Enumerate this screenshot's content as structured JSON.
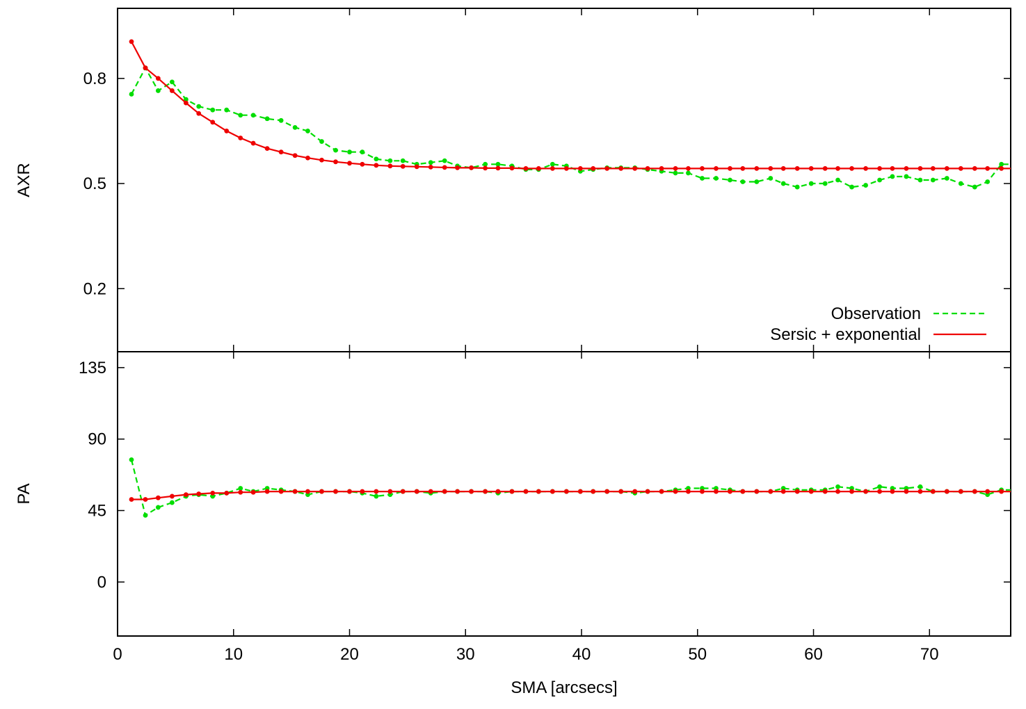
{
  "chart_data": [
    {
      "type": "line",
      "panel": "top",
      "title": "",
      "xlabel": "",
      "ylabel": "AXR",
      "xlim": [
        0,
        77
      ],
      "ylim": [
        0.02,
        1.0
      ],
      "xticks": [
        0,
        10,
        20,
        30,
        40,
        50,
        60,
        70
      ],
      "xtick_labels": [],
      "yticks": [
        0.2,
        0.5,
        0.8
      ],
      "ytick_labels": [
        "0.2",
        "0.5",
        "0.8"
      ],
      "grid": false,
      "legend": {
        "placement": "bottom-right",
        "entries": [
          "Observation",
          "Sersic + exponential"
        ]
      },
      "series": [
        {
          "name": "Observation",
          "color": "#00dd00",
          "line_style": "dashed",
          "points": [
            [
              1.2,
              0.755
            ],
            [
              2.4,
              0.83
            ],
            [
              3.5,
              0.765
            ],
            [
              4.7,
              0.79
            ],
            [
              5.9,
              0.74
            ],
            [
              7.0,
              0.72
            ],
            [
              8.2,
              0.71
            ],
            [
              9.4,
              0.71
            ],
            [
              10.6,
              0.695
            ],
            [
              11.7,
              0.695
            ],
            [
              12.9,
              0.685
            ],
            [
              14.1,
              0.68
            ],
            [
              15.3,
              0.66
            ],
            [
              16.4,
              0.65
            ],
            [
              17.6,
              0.62
            ],
            [
              18.8,
              0.595
            ],
            [
              20.0,
              0.59
            ],
            [
              21.1,
              0.59
            ],
            [
              22.3,
              0.57
            ],
            [
              23.5,
              0.565
            ],
            [
              24.6,
              0.565
            ],
            [
              25.8,
              0.555
            ],
            [
              27.0,
              0.56
            ],
            [
              28.2,
              0.565
            ],
            [
              29.3,
              0.55
            ],
            [
              30.5,
              0.545
            ],
            [
              31.7,
              0.555
            ],
            [
              32.8,
              0.555
            ],
            [
              34.0,
              0.55
            ],
            [
              35.2,
              0.54
            ],
            [
              36.3,
              0.54
            ],
            [
              37.5,
              0.555
            ],
            [
              38.7,
              0.55
            ],
            [
              39.9,
              0.535
            ],
            [
              41.0,
              0.54
            ],
            [
              42.2,
              0.545
            ],
            [
              43.4,
              0.545
            ],
            [
              44.6,
              0.545
            ],
            [
              45.7,
              0.54
            ],
            [
              46.9,
              0.535
            ],
            [
              48.1,
              0.53
            ],
            [
              49.2,
              0.53
            ],
            [
              50.4,
              0.515
            ],
            [
              51.6,
              0.515
            ],
            [
              52.8,
              0.51
            ],
            [
              53.9,
              0.505
            ],
            [
              55.1,
              0.505
            ],
            [
              56.3,
              0.515
            ],
            [
              57.4,
              0.5
            ],
            [
              58.6,
              0.49
            ],
            [
              59.8,
              0.5
            ],
            [
              61.0,
              0.5
            ],
            [
              62.1,
              0.51
            ],
            [
              63.3,
              0.49
            ],
            [
              64.5,
              0.495
            ],
            [
              65.7,
              0.51
            ],
            [
              66.8,
              0.52
            ],
            [
              68.0,
              0.52
            ],
            [
              69.2,
              0.51
            ],
            [
              70.3,
              0.51
            ],
            [
              71.5,
              0.515
            ],
            [
              72.7,
              0.5
            ],
            [
              73.9,
              0.49
            ],
            [
              75.0,
              0.505
            ],
            [
              76.2,
              0.555
            ],
            [
              77.0,
              0.555
            ]
          ]
        },
        {
          "name": "Sersic + exponential",
          "color": "#ee0000",
          "line_style": "solid",
          "points": [
            [
              1.2,
              0.905
            ],
            [
              2.4,
              0.83
            ],
            [
              3.5,
              0.8
            ],
            [
              4.7,
              0.765
            ],
            [
              5.9,
              0.73
            ],
            [
              7.0,
              0.7
            ],
            [
              8.2,
              0.675
            ],
            [
              9.4,
              0.65
            ],
            [
              10.6,
              0.63
            ],
            [
              11.7,
              0.615
            ],
            [
              12.9,
              0.6
            ],
            [
              14.1,
              0.59
            ],
            [
              15.3,
              0.58
            ],
            [
              16.4,
              0.573
            ],
            [
              17.6,
              0.567
            ],
            [
              18.8,
              0.562
            ],
            [
              20.0,
              0.558
            ],
            [
              21.1,
              0.555
            ],
            [
              22.3,
              0.552
            ],
            [
              23.5,
              0.55
            ],
            [
              24.6,
              0.549
            ],
            [
              25.8,
              0.548
            ],
            [
              27.0,
              0.547
            ],
            [
              28.2,
              0.546
            ],
            [
              29.3,
              0.545
            ],
            [
              30.5,
              0.545
            ],
            [
              31.7,
              0.544
            ],
            [
              32.8,
              0.544
            ],
            [
              34.0,
              0.544
            ],
            [
              35.2,
              0.543
            ],
            [
              36.3,
              0.543
            ],
            [
              37.5,
              0.543
            ],
            [
              38.7,
              0.543
            ],
            [
              39.9,
              0.543
            ],
            [
              41.0,
              0.543
            ],
            [
              42.2,
              0.543
            ],
            [
              43.4,
              0.543
            ],
            [
              44.6,
              0.543
            ],
            [
              45.7,
              0.543
            ],
            [
              46.9,
              0.543
            ],
            [
              48.1,
              0.543
            ],
            [
              49.2,
              0.543
            ],
            [
              50.4,
              0.543
            ],
            [
              51.6,
              0.543
            ],
            [
              52.8,
              0.543
            ],
            [
              53.9,
              0.543
            ],
            [
              55.1,
              0.543
            ],
            [
              56.3,
              0.543
            ],
            [
              57.4,
              0.543
            ],
            [
              58.6,
              0.543
            ],
            [
              59.8,
              0.543
            ],
            [
              61.0,
              0.543
            ],
            [
              62.1,
              0.543
            ],
            [
              63.3,
              0.543
            ],
            [
              64.5,
              0.543
            ],
            [
              65.7,
              0.543
            ],
            [
              66.8,
              0.543
            ],
            [
              68.0,
              0.543
            ],
            [
              69.2,
              0.543
            ],
            [
              70.3,
              0.543
            ],
            [
              71.5,
              0.543
            ],
            [
              72.7,
              0.543
            ],
            [
              73.9,
              0.543
            ],
            [
              75.0,
              0.543
            ],
            [
              76.2,
              0.543
            ],
            [
              77.0,
              0.543
            ]
          ]
        }
      ]
    },
    {
      "type": "line",
      "panel": "bottom",
      "title": "",
      "xlabel": "SMA [arcsecs]",
      "ylabel": "PA",
      "xlim": [
        0,
        77
      ],
      "ylim": [
        -34,
        145
      ],
      "xticks": [
        0,
        10,
        20,
        30,
        40,
        50,
        60,
        70
      ],
      "xtick_labels": [
        "0",
        "10",
        "20",
        "30",
        "40",
        "50",
        "60",
        "70"
      ],
      "yticks": [
        0,
        45,
        90,
        135
      ],
      "ytick_labels": [
        "0",
        "45",
        "90",
        "135"
      ],
      "grid": false,
      "series": [
        {
          "name": "Observation",
          "color": "#00dd00",
          "line_style": "dashed",
          "points": [
            [
              1.2,
              77
            ],
            [
              2.4,
              42
            ],
            [
              3.5,
              47
            ],
            [
              4.7,
              50
            ],
            [
              5.9,
              54
            ],
            [
              7.0,
              55
            ],
            [
              8.2,
              54
            ],
            [
              9.4,
              56
            ],
            [
              10.6,
              59
            ],
            [
              11.7,
              57
            ],
            [
              12.9,
              59
            ],
            [
              14.1,
              58
            ],
            [
              15.3,
              57
            ],
            [
              16.4,
              55
            ],
            [
              17.6,
              57
            ],
            [
              18.8,
              57
            ],
            [
              20.0,
              57
            ],
            [
              21.1,
              56
            ],
            [
              22.3,
              54
            ],
            [
              23.5,
              55
            ],
            [
              24.6,
              57
            ],
            [
              25.8,
              57
            ],
            [
              27.0,
              56
            ],
            [
              28.2,
              57
            ],
            [
              29.3,
              57
            ],
            [
              30.5,
              57
            ],
            [
              31.7,
              57
            ],
            [
              32.8,
              56
            ],
            [
              34.0,
              57
            ],
            [
              35.2,
              57
            ],
            [
              36.3,
              57
            ],
            [
              37.5,
              57
            ],
            [
              38.7,
              57
            ],
            [
              39.9,
              57
            ],
            [
              41.0,
              57
            ],
            [
              42.2,
              57
            ],
            [
              43.4,
              57
            ],
            [
              44.6,
              56
            ],
            [
              45.7,
              57
            ],
            [
              46.9,
              57
            ],
            [
              48.1,
              58
            ],
            [
              49.2,
              59
            ],
            [
              50.4,
              59
            ],
            [
              51.6,
              59
            ],
            [
              52.8,
              58
            ],
            [
              53.9,
              57
            ],
            [
              55.1,
              57
            ],
            [
              56.3,
              57
            ],
            [
              57.4,
              59
            ],
            [
              58.6,
              58
            ],
            [
              59.8,
              58
            ],
            [
              61.0,
              58
            ],
            [
              62.1,
              60
            ],
            [
              63.3,
              59
            ],
            [
              64.5,
              57
            ],
            [
              65.7,
              60
            ],
            [
              66.8,
              59
            ],
            [
              68.0,
              59
            ],
            [
              69.2,
              60
            ],
            [
              70.3,
              57
            ],
            [
              71.5,
              57
            ],
            [
              72.7,
              57
            ],
            [
              73.9,
              57
            ],
            [
              75.0,
              55
            ],
            [
              76.2,
              58
            ],
            [
              77.0,
              58
            ]
          ]
        },
        {
          "name": "Sersic + exponential",
          "color": "#ee0000",
          "line_style": "solid",
          "points": [
            [
              1.2,
              52
            ],
            [
              2.4,
              52
            ],
            [
              3.5,
              53
            ],
            [
              4.7,
              54
            ],
            [
              5.9,
              55
            ],
            [
              7.0,
              55.5
            ],
            [
              8.2,
              56
            ],
            [
              9.4,
              56
            ],
            [
              10.6,
              56.5
            ],
            [
              11.7,
              56.5
            ],
            [
              12.9,
              57
            ],
            [
              14.1,
              57
            ],
            [
              15.3,
              57
            ],
            [
              16.4,
              57
            ],
            [
              17.6,
              57
            ],
            [
              18.8,
              57
            ],
            [
              20.0,
              57
            ],
            [
              21.1,
              57
            ],
            [
              22.3,
              57
            ],
            [
              23.5,
              57
            ],
            [
              24.6,
              57
            ],
            [
              25.8,
              57
            ],
            [
              27.0,
              57
            ],
            [
              28.2,
              57
            ],
            [
              29.3,
              57
            ],
            [
              30.5,
              57
            ],
            [
              31.7,
              57
            ],
            [
              32.8,
              57
            ],
            [
              34.0,
              57
            ],
            [
              35.2,
              57
            ],
            [
              36.3,
              57
            ],
            [
              37.5,
              57
            ],
            [
              38.7,
              57
            ],
            [
              39.9,
              57
            ],
            [
              41.0,
              57
            ],
            [
              42.2,
              57
            ],
            [
              43.4,
              57
            ],
            [
              44.6,
              57
            ],
            [
              45.7,
              57
            ],
            [
              46.9,
              57
            ],
            [
              48.1,
              57
            ],
            [
              49.2,
              57
            ],
            [
              50.4,
              57
            ],
            [
              51.6,
              57
            ],
            [
              52.8,
              57
            ],
            [
              53.9,
              57
            ],
            [
              55.1,
              57
            ],
            [
              56.3,
              57
            ],
            [
              57.4,
              57
            ],
            [
              58.6,
              57
            ],
            [
              59.8,
              57
            ],
            [
              61.0,
              57
            ],
            [
              62.1,
              57
            ],
            [
              63.3,
              57
            ],
            [
              64.5,
              57
            ],
            [
              65.7,
              57
            ],
            [
              66.8,
              57
            ],
            [
              68.0,
              57
            ],
            [
              69.2,
              57
            ],
            [
              70.3,
              57
            ],
            [
              71.5,
              57
            ],
            [
              72.7,
              57
            ],
            [
              73.9,
              57
            ],
            [
              75.0,
              57
            ],
            [
              76.2,
              57
            ],
            [
              77.0,
              57
            ]
          ]
        }
      ]
    }
  ]
}
